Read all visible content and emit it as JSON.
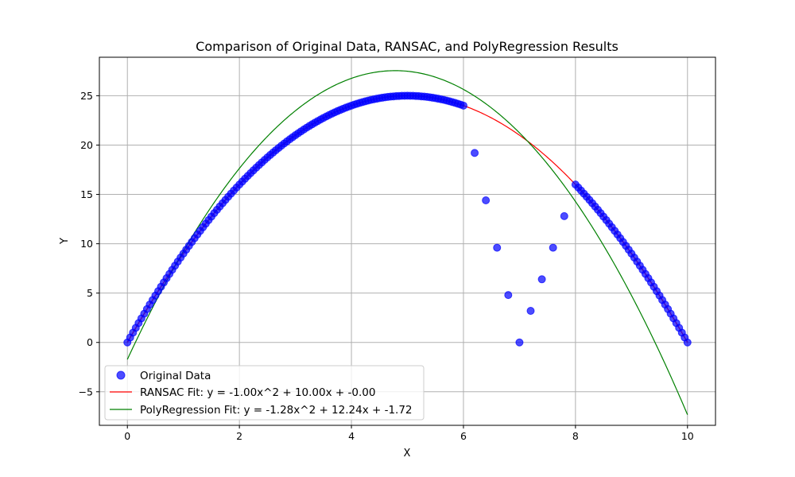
{
  "chart_data": {
    "type": "scatter",
    "title": "Comparison of Original Data, RANSAC, and PolyRegression Results",
    "xlabel": "X",
    "ylabel": "Y",
    "xlim": [
      -0.5,
      10.5
    ],
    "ylim": [
      -8.4,
      28.9
    ],
    "x_ticks": [
      0,
      2,
      4,
      6,
      8,
      10
    ],
    "y_ticks": [
      -5,
      0,
      5,
      10,
      15,
      20,
      25
    ],
    "grid": true,
    "legend_position": "lower-left",
    "series": [
      {
        "name": "Original Data",
        "kind": "scatter",
        "color": "#0000ff",
        "opacity": 0.7,
        "inlier_model": "y = -x^2 + 10x",
        "inlier_x_ranges": [
          [
            0,
            6
          ],
          [
            8,
            10
          ]
        ],
        "inlier_step": 0.05,
        "outliers": [
          {
            "x": 6.2,
            "y": 19.2
          },
          {
            "x": 6.4,
            "y": 14.4
          },
          {
            "x": 6.6,
            "y": 9.6
          },
          {
            "x": 6.8,
            "y": 4.8
          },
          {
            "x": 7.0,
            "y": 0.0
          },
          {
            "x": 7.2,
            "y": 3.2
          },
          {
            "x": 7.4,
            "y": 6.4
          },
          {
            "x": 7.6,
            "y": 9.6
          },
          {
            "x": 7.8,
            "y": 12.8
          }
        ]
      },
      {
        "name": "RANSAC Fit: y = -1.00x^2 + 10.00x + -0.00",
        "kind": "line",
        "color": "#ff0000",
        "coefficients": [
          -1.0,
          10.0,
          0.0
        ],
        "x_range": [
          0,
          10
        ]
      },
      {
        "name": "PolyRegression Fit: y = -1.28x^2 + 12.24x + -1.72",
        "kind": "line",
        "color": "#008000",
        "coefficients": [
          -1.28,
          12.24,
          -1.72
        ],
        "x_range": [
          0,
          10
        ]
      }
    ]
  }
}
